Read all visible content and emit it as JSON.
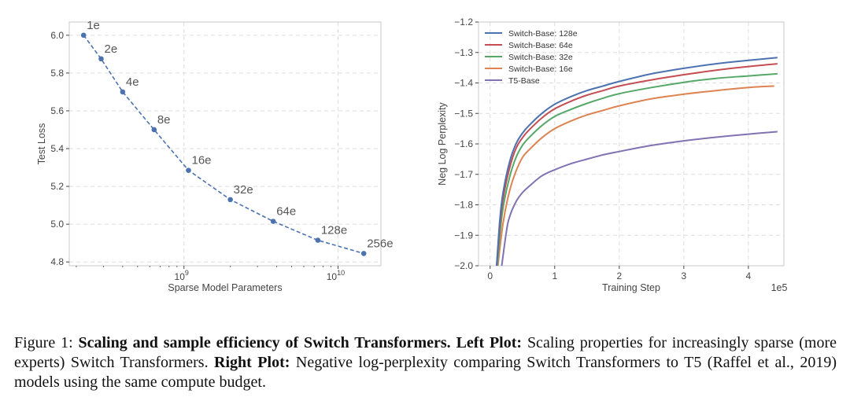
{
  "chart_data": [
    {
      "type": "line",
      "title": "",
      "xlabel": "Sparse Model Parameters",
      "ylabel": "Test Loss",
      "xscale": "log",
      "xlim": [
        180000000,
        19000000000
      ],
      "ylim": [
        4.78,
        6.07
      ],
      "xticks": [
        {
          "value": 1000000000,
          "base": "10",
          "exp": "9"
        },
        {
          "value": 10000000000,
          "base": "10",
          "exp": "10"
        }
      ],
      "yticks": [
        "6.0",
        "5.8",
        "5.6",
        "5.4",
        "5.2",
        "5.0",
        "4.8"
      ],
      "points": [
        {
          "label": "1e",
          "x": 223000000,
          "y": 6.0
        },
        {
          "label": "2e",
          "x": 290000000,
          "y": 5.875
        },
        {
          "label": "4e",
          "x": 400000000,
          "y": 5.7
        },
        {
          "label": "8e",
          "x": 640000000,
          "y": 5.5
        },
        {
          "label": "16e",
          "x": 1070000000,
          "y": 5.285
        },
        {
          "label": "32e",
          "x": 2000000000,
          "y": 5.13
        },
        {
          "label": "64e",
          "x": 3800000000,
          "y": 5.015
        },
        {
          "label": "128e",
          "x": 7400000000,
          "y": 4.915
        },
        {
          "label": "256e",
          "x": 14700000000,
          "y": 4.845
        }
      ],
      "color": "#4c72b0",
      "grid": true
    },
    {
      "type": "line",
      "title": "",
      "xlabel": "Training Step",
      "ylabel": "Neg Log Perplexity",
      "x_offset_label": "1e5",
      "xlim": [
        -0.18,
        4.55
      ],
      "ylim": [
        -2.0,
        -1.2
      ],
      "xticks": [
        "0",
        "1",
        "2",
        "3",
        "4"
      ],
      "yticks": [
        "−1.2",
        "−1.3",
        "−1.4",
        "−1.5",
        "−1.6",
        "−1.7",
        "−1.8",
        "−1.9",
        "−2.0"
      ],
      "legend_position": "top-left",
      "grid": true,
      "series": [
        {
          "name": "Switch-Base: 128e",
          "color": "#4c72b0",
          "x": [
            0.1,
            0.15,
            0.2,
            0.3,
            0.4,
            0.5,
            0.6,
            0.8,
            1.0,
            1.25,
            1.5,
            1.75,
            2.0,
            2.5,
            3.0,
            3.5,
            4.0,
            4.45
          ],
          "y": [
            -2.0,
            -1.85,
            -1.76,
            -1.66,
            -1.6,
            -1.565,
            -1.54,
            -1.5,
            -1.47,
            -1.445,
            -1.425,
            -1.41,
            -1.395,
            -1.37,
            -1.352,
            -1.337,
            -1.326,
            -1.317
          ]
        },
        {
          "name": "Switch-Base: 64e",
          "color": "#c44e52",
          "x": [
            0.1,
            0.15,
            0.2,
            0.3,
            0.4,
            0.5,
            0.6,
            0.8,
            1.0,
            1.25,
            1.5,
            1.75,
            2.0,
            2.5,
            3.0,
            3.5,
            4.0,
            4.45
          ],
          "y": [
            -2.0,
            -1.87,
            -1.78,
            -1.68,
            -1.615,
            -1.58,
            -1.555,
            -1.515,
            -1.485,
            -1.46,
            -1.44,
            -1.425,
            -1.41,
            -1.39,
            -1.373,
            -1.358,
            -1.346,
            -1.337
          ]
        },
        {
          "name": "Switch-Base: 32e",
          "color": "#55a868",
          "x": [
            0.11,
            0.15,
            0.2,
            0.3,
            0.4,
            0.5,
            0.6,
            0.8,
            1.0,
            1.25,
            1.5,
            1.75,
            2.0,
            2.5,
            3.0,
            3.5,
            4.0,
            4.45
          ],
          "y": [
            -2.0,
            -1.9,
            -1.81,
            -1.71,
            -1.645,
            -1.605,
            -1.58,
            -1.54,
            -1.51,
            -1.487,
            -1.467,
            -1.45,
            -1.435,
            -1.415,
            -1.398,
            -1.385,
            -1.377,
            -1.37
          ]
        },
        {
          "name": "Switch-Base: 16e",
          "color": "#dd8452",
          "x": [
            0.12,
            0.2,
            0.3,
            0.4,
            0.5,
            0.6,
            0.8,
            1.0,
            1.25,
            1.5,
            1.75,
            2.0,
            2.5,
            3.0,
            3.5,
            4.0,
            4.4
          ],
          "y": [
            -2.0,
            -1.86,
            -1.755,
            -1.69,
            -1.645,
            -1.62,
            -1.58,
            -1.55,
            -1.525,
            -1.505,
            -1.49,
            -1.475,
            -1.452,
            -1.437,
            -1.425,
            -1.415,
            -1.41
          ]
        },
        {
          "name": "T5-Base",
          "color": "#8172b2",
          "x": [
            0.18,
            0.25,
            0.3,
            0.4,
            0.5,
            0.6,
            0.8,
            1.0,
            1.25,
            1.5,
            1.75,
            2.0,
            2.5,
            3.0,
            3.5,
            4.0,
            4.45
          ],
          "y": [
            -2.0,
            -1.89,
            -1.84,
            -1.79,
            -1.76,
            -1.74,
            -1.705,
            -1.685,
            -1.665,
            -1.65,
            -1.636,
            -1.625,
            -1.605,
            -1.59,
            -1.578,
            -1.568,
            -1.56
          ]
        }
      ]
    }
  ],
  "caption": {
    "prefix": "Figure 1: ",
    "bold_title": "Scaling and sample efficiency of Switch Transformers.",
    "left_label": "Left Plot:",
    "left_text": "Scaling properties for increasingly sparse (more experts) Switch Transformers.",
    "right_label": "Right Plot:",
    "right_text": "Negative log-perplexity comparing Switch Transformers to T5 (Raffel et al., 2019) models using the same compute budget."
  }
}
